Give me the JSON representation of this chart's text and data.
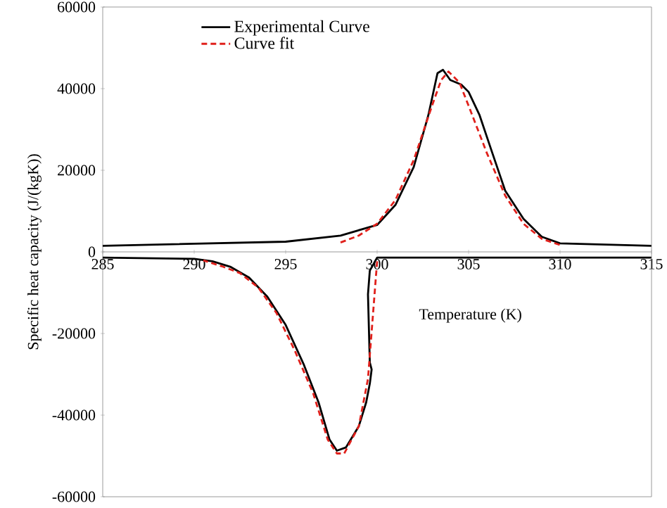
{
  "chart_data": {
    "type": "line",
    "xlabel": "Temperature (K)",
    "ylabel": "Specific heat capacity (J/(kgK))",
    "xlim": [
      285,
      315
    ],
    "xticks": [
      285,
      290,
      295,
      300,
      305,
      310,
      315
    ],
    "ylim": [
      -60000,
      60000
    ],
    "yticks": [
      -60000,
      -40000,
      -20000,
      0,
      20000,
      40000,
      60000
    ],
    "grid": false,
    "legend": "top left",
    "series": [
      {
        "name": "Experimental Curve",
        "color": "#000000",
        "line_style": "solid",
        "x": [
          285,
          295,
          298,
          300,
          301,
          302,
          302.8,
          303.3,
          303.6,
          304,
          304.6,
          305,
          305.6,
          306.3,
          307,
          308,
          309,
          310,
          315,
          null,
          315,
          300,
          299.6,
          299.5,
          299.6,
          299.7,
          299.6,
          299.4,
          299,
          298.3,
          297.8,
          297.4,
          296.8,
          296,
          295,
          294,
          293,
          292,
          291,
          290,
          285
        ],
        "values": [
          1500,
          2500,
          4000,
          6600,
          11500,
          20800,
          33500,
          43800,
          44600,
          42100,
          41000,
          39200,
          33500,
          24200,
          15000,
          8100,
          3700,
          2100,
          1500,
          null,
          -1400,
          -1400,
          -4600,
          -10400,
          -27100,
          -28800,
          -32300,
          -36900,
          -42700,
          -47900,
          -48700,
          -46000,
          -36900,
          -27700,
          -17900,
          -11000,
          -6300,
          -3700,
          -2300,
          -1700,
          -1400
        ]
      },
      {
        "name": "Curve fit",
        "color": "#e0201b",
        "line_style": "dashed",
        "x": [
          298,
          299,
          300,
          301,
          302,
          303,
          303.5,
          303.9,
          304.5,
          305,
          306,
          307,
          308,
          309,
          310,
          null,
          300,
          299.8,
          299.5,
          299,
          298.2,
          297.8,
          297.3,
          296.5,
          295.5,
          294.5,
          293.5,
          292.5,
          291.5,
          290.5
        ],
        "values": [
          2300,
          4000,
          6900,
          12700,
          22500,
          35800,
          42100,
          44200,
          41500,
          35800,
          24200,
          13800,
          6900,
          3200,
          1700,
          null,
          -2300,
          -13800,
          -31100,
          -42700,
          -49400,
          -49400,
          -46000,
          -34600,
          -24200,
          -15000,
          -8700,
          -5200,
          -3500,
          -2100
        ]
      }
    ]
  }
}
